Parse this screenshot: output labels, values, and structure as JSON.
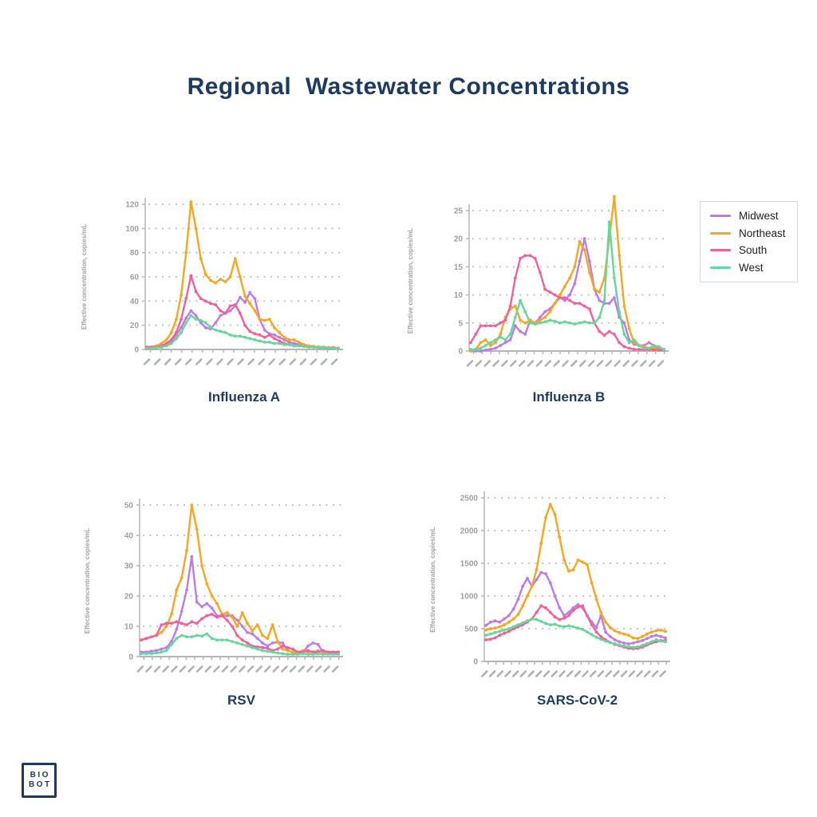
{
  "page": {
    "title": "Regional  Wastewater Concentrations",
    "title_color": "#1e3a5f",
    "background": "#ffffff"
  },
  "legend": {
    "items": [
      {
        "label": "Midwest",
        "color": "#bd7ce4"
      },
      {
        "label": "Northeast",
        "color": "#f5a623"
      },
      {
        "label": "South",
        "color": "#f2609a"
      },
      {
        "label": "West",
        "color": "#67d59c"
      }
    ]
  },
  "logo": {
    "line1": "BIO",
    "line2": "BOT"
  },
  "axis_style": {
    "tick_color": "#9e9e9e",
    "grid_color": "#c4c4c4",
    "axis_color": "#b5b5b5"
  },
  "chart_data": [
    {
      "type": "line",
      "title": "Influenza A",
      "ylabel": "Effective concentration, copies/mL",
      "yticks": [
        0,
        20,
        40,
        60,
        80,
        100,
        120
      ],
      "ylim": [
        0,
        125
      ],
      "grid": true,
      "legend_position": "outside-right",
      "x_tick_count": 19,
      "x_tick_labels_legible": false,
      "series": [
        {
          "name": "Midwest",
          "color": "#bd7ce4",
          "values": [
            1,
            1,
            1.5,
            2,
            4,
            7,
            12,
            18,
            26,
            32,
            28,
            22,
            18,
            17,
            22,
            28,
            30,
            32,
            36,
            43,
            39,
            47,
            42,
            25,
            16,
            13,
            12,
            10,
            8,
            6,
            5,
            4,
            3,
            2.5,
            2,
            1.5,
            1.5,
            1,
            1,
            1
          ]
        },
        {
          "name": "Northeast",
          "color": "#f5a623",
          "values": [
            2,
            2,
            3,
            5,
            8,
            14,
            25,
            45,
            80,
            122,
            100,
            75,
            62,
            57,
            55,
            58,
            56,
            60,
            75,
            60,
            44,
            38,
            32,
            25,
            24,
            25,
            18,
            14,
            10,
            8,
            8,
            6,
            4,
            3,
            2.5,
            2,
            2,
            1.5,
            1.5,
            1
          ]
        },
        {
          "name": "South",
          "color": "#f2609a",
          "values": [
            2,
            2,
            2,
            3,
            5,
            8,
            14,
            25,
            42,
            61,
            48,
            42,
            40,
            38,
            37,
            32,
            30,
            36,
            37,
            30,
            20,
            15,
            13,
            12,
            10,
            12,
            9,
            7,
            5,
            4,
            3,
            3,
            2.5,
            2,
            2,
            2,
            1.5,
            1.5,
            1.5,
            1
          ]
        },
        {
          "name": "West",
          "color": "#67d59c",
          "values": [
            1,
            1,
            1.5,
            2,
            3,
            5,
            9,
            14,
            22,
            28,
            25,
            24,
            22,
            18,
            16,
            15,
            14,
            12,
            11,
            11,
            10,
            9,
            8,
            7,
            6,
            6,
            5,
            5,
            4,
            4,
            3,
            3,
            2.5,
            2,
            2,
            2,
            1.5,
            1.5,
            1,
            1
          ]
        }
      ]
    },
    {
      "type": "line",
      "title": "Influenza B",
      "ylabel": "Effective concentration, copies/mL",
      "yticks": [
        0,
        5,
        10,
        15,
        20,
        25
      ],
      "ylim": [
        0,
        28
      ],
      "grid": true,
      "x_tick_count": 23,
      "x_tick_labels_legible": false,
      "series": [
        {
          "name": "Midwest",
          "color": "#bd7ce4",
          "values": [
            0,
            0,
            0,
            0.2,
            0.3,
            0.5,
            1,
            1.5,
            2,
            4.5,
            3.5,
            3,
            5.5,
            5,
            6,
            7,
            7.5,
            8.5,
            9.5,
            9,
            10,
            12,
            16,
            20,
            16,
            11,
            9,
            8.5,
            8.5,
            9.5,
            6,
            5,
            2,
            1.2,
            1,
            1,
            1.5,
            1,
            0.5,
            0.3
          ]
        },
        {
          "name": "Northeast",
          "color": "#f5a623",
          "values": [
            0,
            0.3,
            1.5,
            2,
            1,
            1.5,
            3,
            6,
            7.5,
            8,
            5.5,
            5,
            5.5,
            5,
            5.5,
            6,
            7,
            8.5,
            10,
            11.5,
            13,
            15,
            19.5,
            18,
            14,
            11,
            10.5,
            13,
            20,
            27.5,
            17,
            8,
            4,
            1.5,
            1,
            0.8,
            0.5,
            0.5,
            0.3,
            0.3
          ]
        },
        {
          "name": "South",
          "color": "#f2609a",
          "values": [
            1.5,
            3,
            4.5,
            4.5,
            4.5,
            4.5,
            5,
            5.5,
            8,
            13,
            16.5,
            17,
            17,
            16.5,
            14,
            11,
            10.5,
            10,
            9.5,
            9.5,
            9,
            8.5,
            8.5,
            8,
            7.5,
            5,
            3.5,
            2.8,
            3.5,
            3,
            1.5,
            0.8,
            0.5,
            0.3,
            0.3,
            0.3,
            0.3,
            0.2,
            0.2,
            0.2
          ]
        },
        {
          "name": "West",
          "color": "#67d59c",
          "values": [
            0.3,
            0.3,
            0.5,
            1,
            1.5,
            2,
            2.5,
            2,
            3,
            6,
            9,
            7,
            5,
            4.8,
            5,
            5.2,
            5.5,
            5.3,
            5,
            5.2,
            5,
            4.8,
            5,
            5.2,
            5,
            5,
            6,
            9,
            23,
            13,
            7,
            3,
            1.5,
            2,
            1,
            0.5,
            0.5,
            1,
            0.8,
            0.3
          ]
        }
      ]
    },
    {
      "type": "line",
      "title": "RSV",
      "ylabel": "Effective concentration, copies/mL",
      "yticks": [
        0,
        10,
        20,
        30,
        40,
        50
      ],
      "ylim": [
        0,
        52
      ],
      "grid": true,
      "x_tick_count": 24,
      "x_tick_labels_legible": false,
      "series": [
        {
          "name": "Midwest",
          "color": "#bd7ce4",
          "values": [
            1.5,
            1.5,
            1.8,
            2,
            2.5,
            3,
            5,
            9,
            15,
            22,
            33,
            18,
            16.5,
            17.5,
            16,
            13.5,
            13.5,
            13.5,
            13.5,
            12,
            10,
            8,
            7.5,
            6,
            4.5,
            3.5,
            4.5,
            4.8,
            4.5,
            2,
            1.5,
            1.2,
            1.5,
            3.5,
            4.5,
            4,
            1.5,
            1,
            1,
            1
          ]
        },
        {
          "name": "Northeast",
          "color": "#f5a623",
          "values": [
            5.5,
            6,
            6.5,
            7,
            8,
            10,
            14,
            22,
            26,
            35,
            50,
            42,
            30,
            24,
            20,
            17.5,
            14,
            14.5,
            13,
            10,
            14.5,
            11,
            8.5,
            10.5,
            7,
            6,
            10.5,
            5,
            2.5,
            2,
            1.5,
            1.5,
            2,
            1.5,
            1.5,
            2,
            1.5,
            1.5,
            1.5,
            1.5
          ]
        },
        {
          "name": "South",
          "color": "#f2609a",
          "values": [
            5.5,
            6,
            6.5,
            7,
            10.5,
            11,
            11,
            11.5,
            11,
            10.5,
            11.5,
            11,
            12.5,
            13.5,
            14,
            13,
            13.5,
            12,
            10,
            7,
            5.5,
            4.5,
            3.5,
            3.2,
            3,
            2.8,
            2,
            2.5,
            3.5,
            3,
            2.5,
            1.5,
            1.5,
            2,
            1.5,
            1.5,
            2,
            1.5,
            1.5,
            1.5
          ]
        },
        {
          "name": "West",
          "color": "#67d59c",
          "values": [
            1,
            1,
            1,
            1.2,
            1.5,
            2,
            4,
            6,
            7,
            6.5,
            6.5,
            7,
            6.8,
            7.5,
            6,
            5.5,
            5.5,
            5.5,
            5,
            4.5,
            4,
            3.5,
            3,
            2.5,
            2,
            1.8,
            1.5,
            1.2,
            1,
            0.8,
            0.8,
            0.8,
            1,
            0.8,
            0.8,
            1,
            0.8,
            0.8,
            0.8,
            0.8
          ]
        }
      ]
    },
    {
      "type": "line",
      "title": "SARS-CoV-2",
      "ylabel": "Effective concentration, copies/mL",
      "yticks": [
        0,
        500,
        1000,
        1500,
        2000,
        2500
      ],
      "ylim": [
        0,
        2550
      ],
      "grid": true,
      "x_tick_count": 24,
      "x_tick_labels_legible": false,
      "series": [
        {
          "name": "Midwest",
          "color": "#bd7ce4",
          "values": [
            550,
            600,
            620,
            600,
            650,
            700,
            800,
            950,
            1150,
            1270,
            1150,
            1250,
            1360,
            1340,
            1200,
            1000,
            820,
            700,
            750,
            820,
            870,
            820,
            700,
            600,
            520,
            700,
            450,
            380,
            330,
            300,
            280,
            270,
            280,
            300,
            320,
            350,
            380,
            400,
            380,
            360
          ]
        },
        {
          "name": "Northeast",
          "color": "#f5a623",
          "values": [
            480,
            500,
            510,
            530,
            560,
            600,
            650,
            720,
            850,
            1000,
            1150,
            1400,
            1800,
            2200,
            2400,
            2250,
            1900,
            1550,
            1380,
            1400,
            1550,
            1520,
            1480,
            1200,
            950,
            750,
            600,
            520,
            470,
            440,
            420,
            400,
            360,
            350,
            380,
            420,
            450,
            470,
            480,
            460
          ]
        },
        {
          "name": "South",
          "color": "#f2609a",
          "values": [
            330,
            340,
            360,
            400,
            430,
            460,
            500,
            530,
            560,
            600,
            650,
            750,
            850,
            820,
            750,
            680,
            640,
            660,
            700,
            780,
            830,
            850,
            700,
            560,
            450,
            380,
            330,
            290,
            260,
            240,
            220,
            200,
            195,
            200,
            220,
            250,
            280,
            300,
            320,
            320
          ]
        },
        {
          "name": "West",
          "color": "#67d59c",
          "values": [
            400,
            420,
            440,
            460,
            480,
            500,
            530,
            560,
            590,
            620,
            650,
            640,
            610,
            580,
            560,
            570,
            540,
            530,
            545,
            530,
            510,
            490,
            450,
            410,
            370,
            340,
            310,
            290,
            270,
            250,
            235,
            225,
            215,
            225,
            245,
            270,
            300,
            330,
            310,
            300
          ]
        }
      ]
    }
  ]
}
